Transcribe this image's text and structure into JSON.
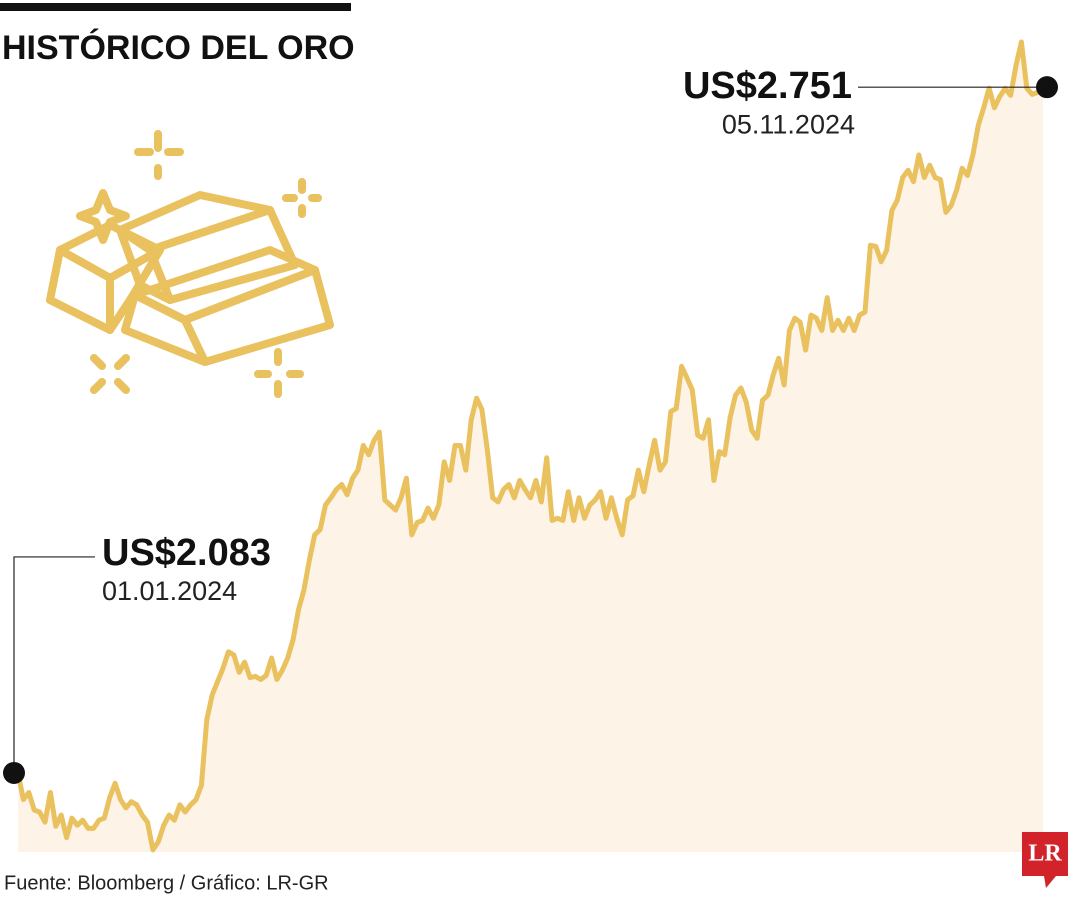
{
  "chart_data": {
    "type": "area",
    "title": "HISTÓRICO DEL ORO",
    "source": "Fuente: Bloomberg / Gráfico: LR-GR",
    "logo": "LR",
    "color": "#e9c15e",
    "fill": "#fdf3e6",
    "ylim": [
      2006,
      2795
    ],
    "categories": [
      "01.01.2024",
      null,
      null,
      null,
      null,
      null,
      null,
      null,
      null,
      null,
      null,
      null,
      null,
      null,
      null,
      null,
      null,
      null,
      null,
      null,
      null,
      null,
      null,
      null,
      null,
      null,
      null,
      null,
      null,
      null,
      null,
      null,
      null,
      null,
      null,
      null,
      null,
      null,
      null,
      null,
      null,
      null,
      null,
      null,
      null,
      null,
      null,
      null,
      null,
      null,
      null,
      null,
      null,
      null,
      null,
      null,
      null,
      null,
      null,
      null,
      null,
      null,
      null,
      null,
      null,
      null,
      null,
      null,
      null,
      null,
      null,
      null,
      null,
      null,
      null,
      null,
      null,
      null,
      null,
      null,
      null,
      null,
      null,
      null,
      null,
      null,
      null,
      null,
      null,
      null,
      null,
      null,
      null,
      null,
      null,
      null,
      null,
      null,
      null,
      null,
      null,
      null,
      null,
      null,
      null,
      null,
      null,
      null,
      null,
      null,
      null,
      null,
      null,
      null,
      null,
      null,
      null,
      null,
      null,
      null,
      null,
      null,
      null,
      null,
      null,
      null,
      null,
      null,
      null,
      null,
      null,
      null,
      null,
      null,
      null,
      null,
      null,
      null,
      null,
      null,
      null,
      null,
      null,
      null,
      null,
      null,
      null,
      null,
      null,
      null,
      null,
      null,
      null,
      null,
      null,
      null,
      null,
      null,
      null,
      null,
      null,
      null,
      null,
      null,
      null,
      null,
      null,
      null,
      null,
      null,
      null,
      null,
      null,
      null,
      null,
      null,
      null,
      null,
      null,
      null,
      null,
      null,
      null,
      null,
      null,
      null,
      null,
      null,
      null,
      null,
      "05.11.2024"
    ],
    "values": [
      2083,
      2057,
      2064,
      2047,
      2045,
      2035,
      2064,
      2031,
      2042,
      2020,
      2039,
      2032,
      2037,
      2029,
      2029,
      2037,
      2039,
      2059,
      2073,
      2057,
      2049,
      2055,
      2052,
      2042,
      2035,
      2008,
      2016,
      2032,
      2042,
      2037,
      2052,
      2045,
      2052,
      2057,
      2071,
      2135,
      2159,
      2172,
      2185,
      2201,
      2198,
      2181,
      2191,
      2176,
      2177,
      2174,
      2178,
      2195,
      2174,
      2183,
      2195,
      2213,
      2242,
      2261,
      2290,
      2315,
      2320,
      2344,
      2351,
      2359,
      2364,
      2354,
      2370,
      2378,
      2402,
      2393,
      2407,
      2415,
      2349,
      2344,
      2339,
      2351,
      2370,
      2315,
      2327,
      2329,
      2341,
      2331,
      2344,
      2386,
      2368,
      2402,
      2402,
      2378,
      2427,
      2448,
      2437,
      2398,
      2351,
      2347,
      2359,
      2364,
      2351,
      2368,
      2359,
      2351,
      2368,
      2347,
      2390,
      2329,
      2331,
      2329,
      2357,
      2329,
      2351,
      2331,
      2344,
      2349,
      2357,
      2331,
      2351,
      2331,
      2315,
      2349,
      2353,
      2378,
      2357,
      2383,
      2407,
      2378,
      2386,
      2435,
      2438,
      2479,
      2468,
      2456,
      2412,
      2409,
      2427,
      2368,
      2396,
      2393,
      2429,
      2451,
      2458,
      2444,
      2417,
      2409,
      2446,
      2451,
      2471,
      2487,
      2461,
      2514,
      2526,
      2522,
      2495,
      2529,
      2526,
      2514,
      2546,
      2514,
      2524,
      2514,
      2526,
      2514,
      2529,
      2532,
      2597,
      2596,
      2581,
      2592,
      2631,
      2641,
      2663,
      2670,
      2659,
      2685,
      2663,
      2675,
      2663,
      2661,
      2629,
      2636,
      2651,
      2672,
      2665,
      2685,
      2714,
      2731,
      2750,
      2731,
      2742,
      2750,
      2743,
      2772,
      2795,
      2750,
      2744,
      2746,
      2751
    ],
    "value_labels": [
      "US$2.083",
      null,
      null,
      null,
      null,
      null,
      null,
      null,
      null,
      null,
      null,
      null,
      null,
      null,
      null,
      null,
      null,
      null,
      null,
      null,
      null,
      null,
      null,
      null,
      null,
      null,
      null,
      null,
      null,
      null,
      null,
      null,
      null,
      null,
      null,
      null,
      null,
      null,
      null,
      null,
      null,
      null,
      null,
      null,
      null,
      null,
      null,
      null,
      null,
      null,
      null,
      null,
      null,
      null,
      null,
      null,
      null,
      null,
      null,
      null,
      null,
      null,
      null,
      null,
      null,
      null,
      null,
      null,
      null,
      null,
      null,
      null,
      null,
      null,
      null,
      null,
      null,
      null,
      null,
      null,
      null,
      null,
      null,
      null,
      null,
      null,
      null,
      null,
      null,
      null,
      null,
      null,
      null,
      null,
      null,
      null,
      null,
      null,
      null,
      null,
      null,
      null,
      null,
      null,
      null,
      null,
      null,
      null,
      null,
      null,
      null,
      null,
      null,
      null,
      null,
      null,
      null,
      null,
      null,
      null,
      null,
      null,
      null,
      null,
      null,
      null,
      null,
      null,
      null,
      null,
      null,
      null,
      null,
      null,
      null,
      null,
      null,
      null,
      null,
      null,
      null,
      null,
      null,
      null,
      null,
      null,
      null,
      null,
      null,
      null,
      null,
      null,
      null,
      null,
      null,
      null,
      null,
      null,
      null,
      null,
      null,
      null,
      null,
      null,
      null,
      null,
      null,
      null,
      null,
      null,
      null,
      null,
      null,
      null,
      null,
      null,
      null,
      null,
      null,
      null,
      null,
      null,
      null,
      null,
      null,
      null,
      null,
      null,
      null,
      null,
      "US$2.751"
    ]
  }
}
